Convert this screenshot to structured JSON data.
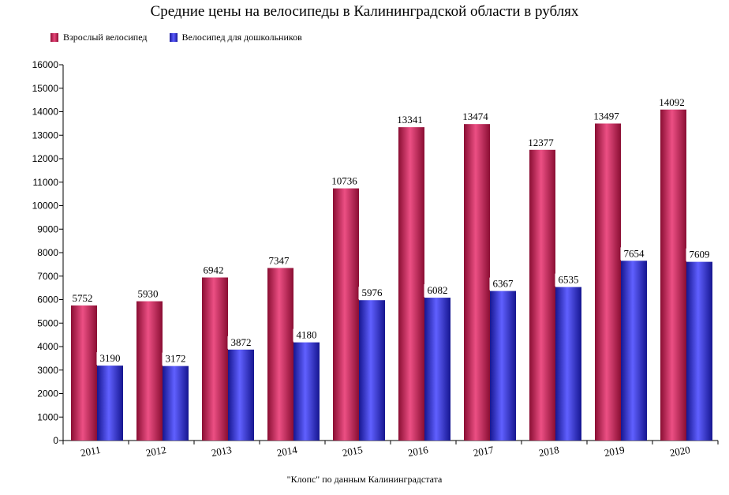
{
  "chart_data": {
    "type": "bar",
    "title": "Средние цены на велосипеды в Калининградской области в рублях",
    "categories": [
      "2011",
      "2012",
      "2013",
      "2014",
      "2015",
      "2016",
      "2017",
      "2018",
      "2019",
      "2020"
    ],
    "series": [
      {
        "name": "Взрослый велосипед",
        "color": "#c8174f",
        "values": [
          5752,
          5930,
          6942,
          7347,
          10736,
          13341,
          13474,
          12377,
          13497,
          14092
        ]
      },
      {
        "name": "Велосипед для дошкольников",
        "color": "#2d2de0",
        "values": [
          3190,
          3172,
          3872,
          4180,
          5976,
          6082,
          6367,
          6535,
          7654,
          7609
        ]
      }
    ],
    "ylim": [
      0,
      16000
    ],
    "yticks": [
      "0",
      "1000",
      "2000",
      "3000",
      "4000",
      "5000",
      "6000",
      "7000",
      "8000",
      "9000",
      "10000",
      "11000",
      "12000",
      "13000",
      "14000",
      "15000",
      "16000"
    ],
    "grid": false,
    "legend_position": "top-left",
    "xlabel": "",
    "ylabel": ""
  },
  "source_note": "\"Клопс\" по данным Калининградстата"
}
